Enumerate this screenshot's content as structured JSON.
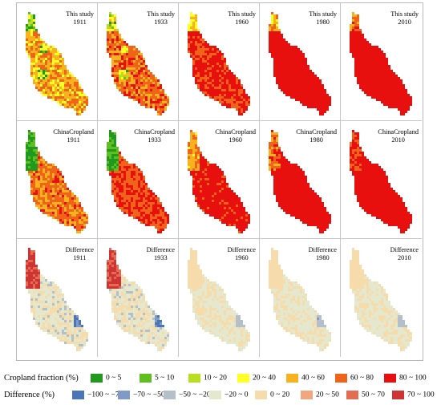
{
  "panels": [
    {
      "line1": "This study",
      "line2": "1911"
    },
    {
      "line1": "This study",
      "line2": "1933"
    },
    {
      "line1": "This study",
      "line2": "1960"
    },
    {
      "line1": "This study",
      "line2": "1980"
    },
    {
      "line1": "This study",
      "line2": "2010"
    },
    {
      "line1": "ChinaCropland",
      "line2": "1911"
    },
    {
      "line1": "ChinaCropland",
      "line2": "1933"
    },
    {
      "line1": "ChinaCropland",
      "line2": "1960"
    },
    {
      "line1": "ChinaCropland",
      "line2": "1980"
    },
    {
      "line1": "ChinaCropland",
      "line2": "2010"
    },
    {
      "line1": "Difference",
      "line2": "1911"
    },
    {
      "line1": "Difference",
      "line2": "1933"
    },
    {
      "line1": "Difference",
      "line2": "1960"
    },
    {
      "line1": "Difference",
      "line2": "1980"
    },
    {
      "line1": "Difference",
      "line2": "2010"
    }
  ],
  "legend": {
    "cropland_title": "Cropland fraction (%)",
    "cropland_items": [
      {
        "label": "0 ~ 5",
        "color": "#1f9a1f"
      },
      {
        "label": "5 ~ 10",
        "color": "#5fbf1f"
      },
      {
        "label": "10 ~ 20",
        "color": "#b8df1f"
      },
      {
        "label": "20 ~ 40",
        "color": "#ffff26"
      },
      {
        "label": "40 ~ 60",
        "color": "#f7b21d"
      },
      {
        "label": "60 ~ 80",
        "color": "#f0641a"
      },
      {
        "label": "80 ~ 100",
        "color": "#e8100f"
      }
    ],
    "difference_title": "Difference (%)",
    "difference_items": [
      {
        "label": "−100 ~ −70",
        "color": "#4a76b7"
      },
      {
        "label": "−70 ~ −50",
        "color": "#7f9ac7"
      },
      {
        "label": "−50 ~ −20",
        "color": "#b3bfc9"
      },
      {
        "label": "−20 ~ 0",
        "color": "#e3e8cf"
      },
      {
        "label": "0 ~ 20",
        "color": "#f6dcaa"
      },
      {
        "label": "20 ~ 50",
        "color": "#f0a77f"
      },
      {
        "label": "50 ~ 70",
        "color": "#e26d52"
      },
      {
        "label": "70 ~ 100",
        "color": "#cf3333"
      }
    ]
  }
}
